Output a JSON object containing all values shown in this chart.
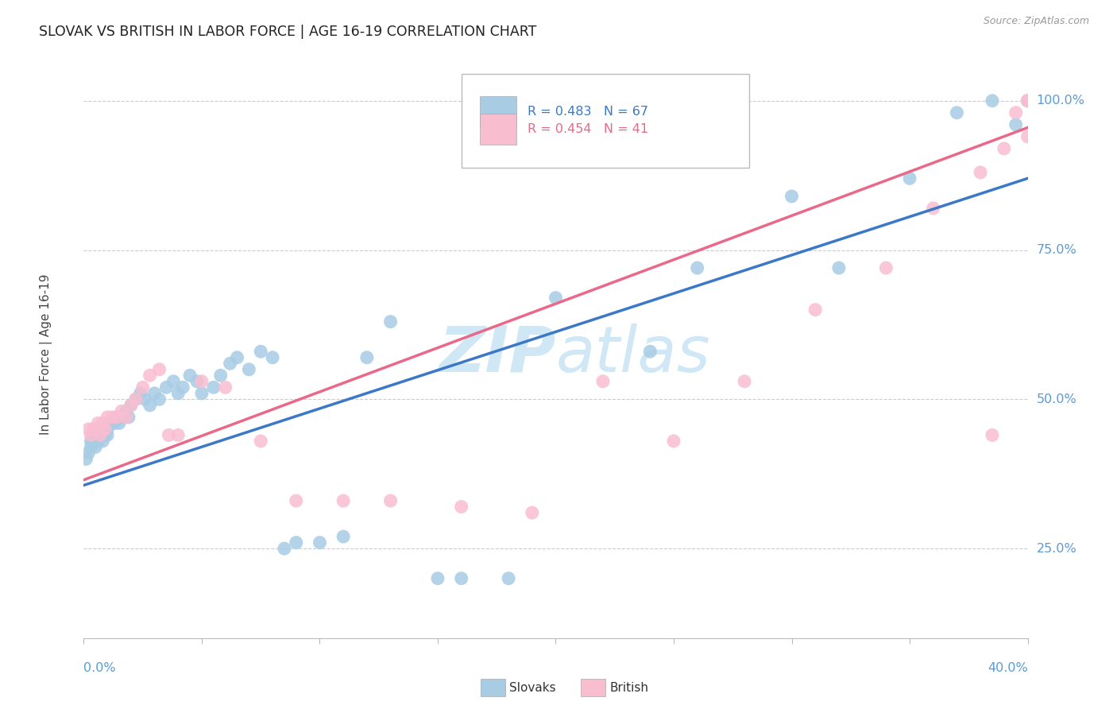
{
  "title": "SLOVAK VS BRITISH IN LABOR FORCE | AGE 16-19 CORRELATION CHART",
  "source": "Source: ZipAtlas.com",
  "ylabel": "In Labor Force | Age 16-19",
  "legend_slovak": "Slovaks",
  "legend_british": "British",
  "r_slovak": 0.483,
  "n_slovak": 67,
  "r_british": 0.454,
  "n_british": 41,
  "watermark": "ZIPatlas",
  "slovak_color": "#a8cce4",
  "british_color": "#f9bdd0",
  "slovak_line_color": "#3c78c8",
  "british_line_color": "#e8698a",
  "tick_color": "#5b9bd5",
  "grid_color": "#cccccc",
  "watermark_color": "#d0e8f5",
  "xmin": 0.0,
  "xmax": 0.4,
  "ymin": 0.3,
  "ymax": 1.05,
  "trend_slovak": [
    0.356,
    0.87
  ],
  "trend_british": [
    0.365,
    0.955
  ],
  "slovak_x": [
    0.001,
    0.002,
    0.003,
    0.003,
    0.004,
    0.004,
    0.005,
    0.005,
    0.006,
    0.006,
    0.007,
    0.007,
    0.008,
    0.008,
    0.009,
    0.009,
    0.01,
    0.01,
    0.011,
    0.012,
    0.013,
    0.014,
    0.015,
    0.016,
    0.017,
    0.018,
    0.019,
    0.02,
    0.022,
    0.024,
    0.026,
    0.028,
    0.03,
    0.032,
    0.035,
    0.038,
    0.04,
    0.042,
    0.045,
    0.048,
    0.05,
    0.055,
    0.058,
    0.062,
    0.065,
    0.07,
    0.075,
    0.08,
    0.085,
    0.09,
    0.1,
    0.11,
    0.12,
    0.13,
    0.15,
    0.16,
    0.18,
    0.2,
    0.24,
    0.26,
    0.3,
    0.32,
    0.35,
    0.37,
    0.385,
    0.395,
    0.4
  ],
  "slovak_y": [
    0.4,
    0.41,
    0.42,
    0.43,
    0.43,
    0.44,
    0.42,
    0.44,
    0.43,
    0.44,
    0.44,
    0.45,
    0.43,
    0.45,
    0.44,
    0.45,
    0.44,
    0.45,
    0.46,
    0.46,
    0.46,
    0.47,
    0.46,
    0.47,
    0.47,
    0.48,
    0.47,
    0.49,
    0.5,
    0.51,
    0.5,
    0.49,
    0.51,
    0.5,
    0.52,
    0.53,
    0.51,
    0.52,
    0.54,
    0.53,
    0.51,
    0.52,
    0.54,
    0.56,
    0.57,
    0.55,
    0.58,
    0.57,
    0.25,
    0.26,
    0.26,
    0.27,
    0.57,
    0.63,
    0.2,
    0.2,
    0.2,
    0.67,
    0.58,
    0.72,
    0.84,
    0.72,
    0.87,
    0.98,
    1.0,
    0.96,
    1.0
  ],
  "british_x": [
    0.002,
    0.003,
    0.004,
    0.005,
    0.006,
    0.007,
    0.008,
    0.009,
    0.01,
    0.012,
    0.014,
    0.016,
    0.018,
    0.02,
    0.022,
    0.025,
    0.028,
    0.032,
    0.036,
    0.04,
    0.05,
    0.06,
    0.075,
    0.09,
    0.11,
    0.13,
    0.16,
    0.19,
    0.22,
    0.25,
    0.28,
    0.31,
    0.34,
    0.36,
    0.38,
    0.385,
    0.39,
    0.395,
    0.4,
    0.4,
    0.4
  ],
  "british_y": [
    0.45,
    0.44,
    0.45,
    0.45,
    0.46,
    0.44,
    0.46,
    0.45,
    0.47,
    0.47,
    0.47,
    0.48,
    0.47,
    0.49,
    0.5,
    0.52,
    0.54,
    0.55,
    0.44,
    0.44,
    0.53,
    0.52,
    0.43,
    0.33,
    0.33,
    0.33,
    0.32,
    0.31,
    0.53,
    0.43,
    0.53,
    0.65,
    0.72,
    0.82,
    0.88,
    0.44,
    0.92,
    0.98,
    1.0,
    1.0,
    0.94
  ]
}
